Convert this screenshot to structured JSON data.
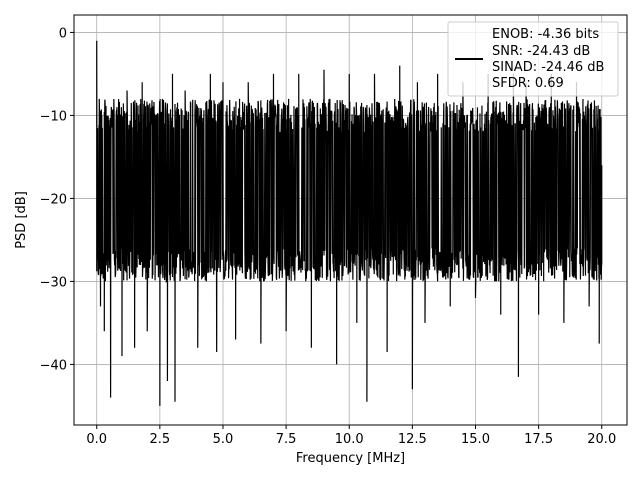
{
  "chart_data": {
    "type": "line",
    "title": "",
    "xlabel": "Frequency [MHz]",
    "ylabel": "PSD [dB]",
    "xlim": [
      -0.9,
      21.0
    ],
    "ylim": [
      -47.3,
      2.1
    ],
    "xticks": [
      0.0,
      2.5,
      5.0,
      7.5,
      10.0,
      12.5,
      15.0,
      17.5,
      20.0
    ],
    "xtick_labels": [
      "0.0",
      "2.5",
      "5.0",
      "7.5",
      "10.0",
      "12.5",
      "15.0",
      "17.5",
      "20.0"
    ],
    "yticks": [
      0,
      -10,
      -20,
      -30,
      -40
    ],
    "ytick_labels": [
      "0",
      "−10",
      "−20",
      "−30",
      "−40"
    ],
    "grid": true,
    "line_color": "#000000",
    "legend": {
      "placement": "top-right",
      "entries": [
        "ENOB: -4.36 bits",
        "SNR: -24.43 dB",
        "SINAD: -24.46 dB",
        "SFDR: 0.69"
      ]
    },
    "series": [
      {
        "x": [
          0.0,
          0.05,
          0.1,
          0.15,
          0.2,
          0.3,
          0.45,
          0.55,
          0.8,
          1.0,
          1.2,
          1.5,
          1.8,
          2.0,
          2.3,
          2.5,
          2.6,
          2.8,
          3.0,
          3.1,
          3.5,
          4.0,
          4.5,
          4.75,
          5.0,
          5.5,
          6.0,
          6.5,
          7.0,
          7.5,
          8.0,
          8.5,
          9.0,
          9.5,
          10.0,
          10.3,
          10.7,
          11.0,
          11.5,
          12.0,
          12.5,
          12.7,
          13.0,
          13.5,
          14.0,
          14.5,
          15.0,
          15.5,
          16.0,
          16.5,
          16.7,
          17.0,
          17.5,
          18.0,
          18.5,
          19.0,
          19.5,
          19.9,
          20.0
        ],
        "y": [
          -1.0,
          -27.0,
          -8.0,
          -33.0,
          -10.0,
          -36.0,
          -12.0,
          -44.0,
          -9.0,
          -39.0,
          -7.0,
          -38.0,
          -6.0,
          -36.0,
          -12.0,
          -45.0,
          -8.0,
          -42.0,
          -5.0,
          -44.5,
          -7.0,
          -38.0,
          -5.0,
          -38.5,
          -6.0,
          -37.0,
          -6.0,
          -37.5,
          -5.0,
          -36.0,
          -5.0,
          -38.0,
          -4.5,
          -40.0,
          -5.0,
          -35.0,
          -44.5,
          -5.0,
          -38.5,
          -4.0,
          -43.0,
          -6.0,
          -35.0,
          -5.0,
          -33.0,
          -6.0,
          -32.0,
          -5.0,
          -34.0,
          -5.0,
          -41.5,
          -6.0,
          -34.0,
          -5.0,
          -35.0,
          -6.0,
          -33.0,
          -37.5,
          -16.0
        ],
        "noise_band_low": -29.0,
        "noise_band_high": -8.0
      }
    ]
  }
}
